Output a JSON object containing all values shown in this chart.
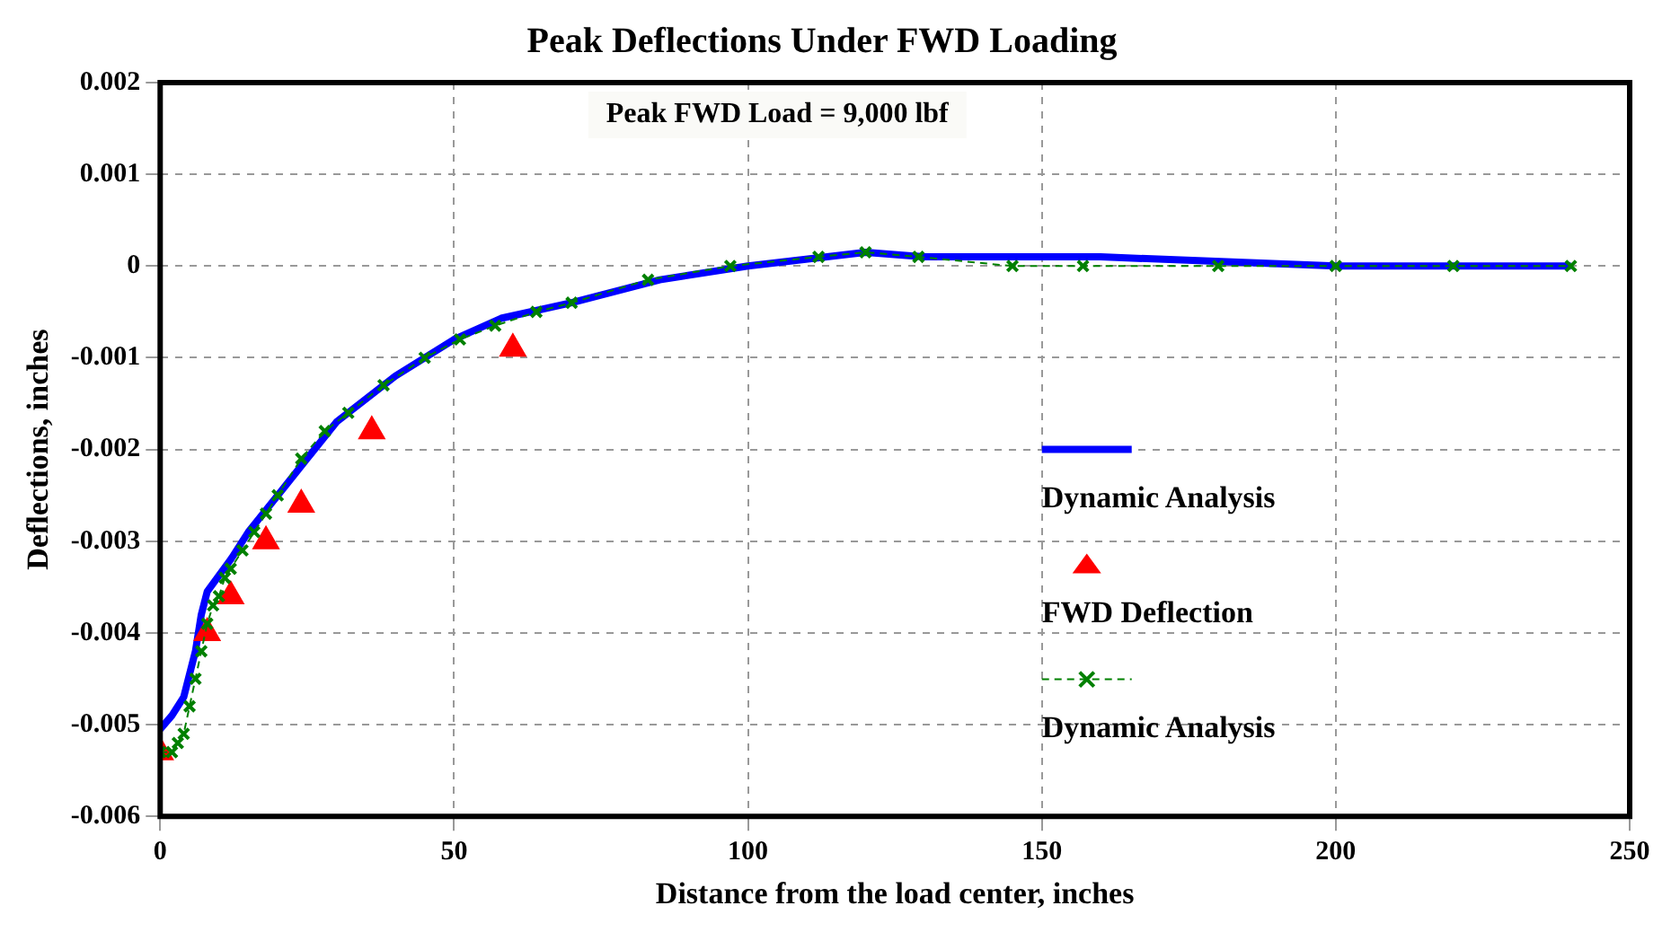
{
  "chart_data": {
    "type": "line",
    "title": "Peak Deflections Under FWD Loading",
    "xlabel": "Distance from the load center, inches",
    "ylabel": "Deflections, inches",
    "annotations": [
      "Peak FWD Load = 9,000 lbf"
    ],
    "xlim": [
      0,
      250
    ],
    "xticks": [
      0,
      50,
      100,
      150,
      200,
      250
    ],
    "ylim": [
      -0.006,
      0.002
    ],
    "yticks": [
      0.002,
      0.001,
      0,
      -0.001,
      -0.002,
      -0.003,
      -0.004,
      -0.005,
      -0.006
    ],
    "grid": true,
    "legend": "right",
    "series": [
      {
        "name": "Dynamic Analysis",
        "color": "#0000ff",
        "marker": "none",
        "line_style": "solid",
        "x": [
          0,
          2,
          4,
          6,
          7,
          8,
          12,
          15,
          20,
          25,
          30,
          40,
          50,
          58,
          70,
          85,
          100,
          120,
          130,
          160,
          200,
          240
        ],
        "values": [
          -0.00505,
          -0.0049,
          -0.0047,
          -0.0042,
          -0.0038,
          -0.00355,
          -0.0032,
          -0.0029,
          -0.0025,
          -0.0021,
          -0.0017,
          -0.0012,
          -0.0008,
          -0.00057,
          -0.0004,
          -0.00015,
          0,
          0.00015,
          0.0001,
          0.0001,
          0,
          0
        ]
      },
      {
        "name": "FWD Deflection",
        "type": "scatter",
        "color": "#ff0000",
        "marker": "triangle",
        "x": [
          0,
          8,
          12,
          18,
          24,
          36,
          60
        ],
        "values": [
          -0.0053,
          -0.004,
          -0.0036,
          -0.003,
          -0.0026,
          -0.0018,
          -0.0009
        ]
      },
      {
        "name": "Dynamic Analysis",
        "color": "#008000",
        "marker": "cross",
        "line_style": "dashed",
        "x": [
          0,
          2,
          3,
          4,
          5,
          6,
          7,
          8,
          9,
          10,
          11,
          12,
          14,
          16,
          18,
          20,
          24,
          28,
          32,
          38,
          45,
          51,
          57,
          64,
          70,
          83,
          97,
          112,
          120,
          129,
          145,
          157,
          180,
          200,
          220,
          240
        ],
        "values": [
          -0.0053,
          -0.0053,
          -0.0052,
          -0.0051,
          -0.0048,
          -0.0045,
          -0.0042,
          -0.0039,
          -0.0037,
          -0.0036,
          -0.0034,
          -0.0033,
          -0.0031,
          -0.0029,
          -0.0027,
          -0.0025,
          -0.0021,
          -0.0018,
          -0.0016,
          -0.0013,
          -0.001,
          -0.0008,
          -0.00065,
          -0.0005,
          -0.0004,
          -0.00015,
          0,
          0.0001,
          0.00015,
          0.0001,
          0,
          0,
          0,
          0,
          0,
          0
        ]
      }
    ]
  }
}
